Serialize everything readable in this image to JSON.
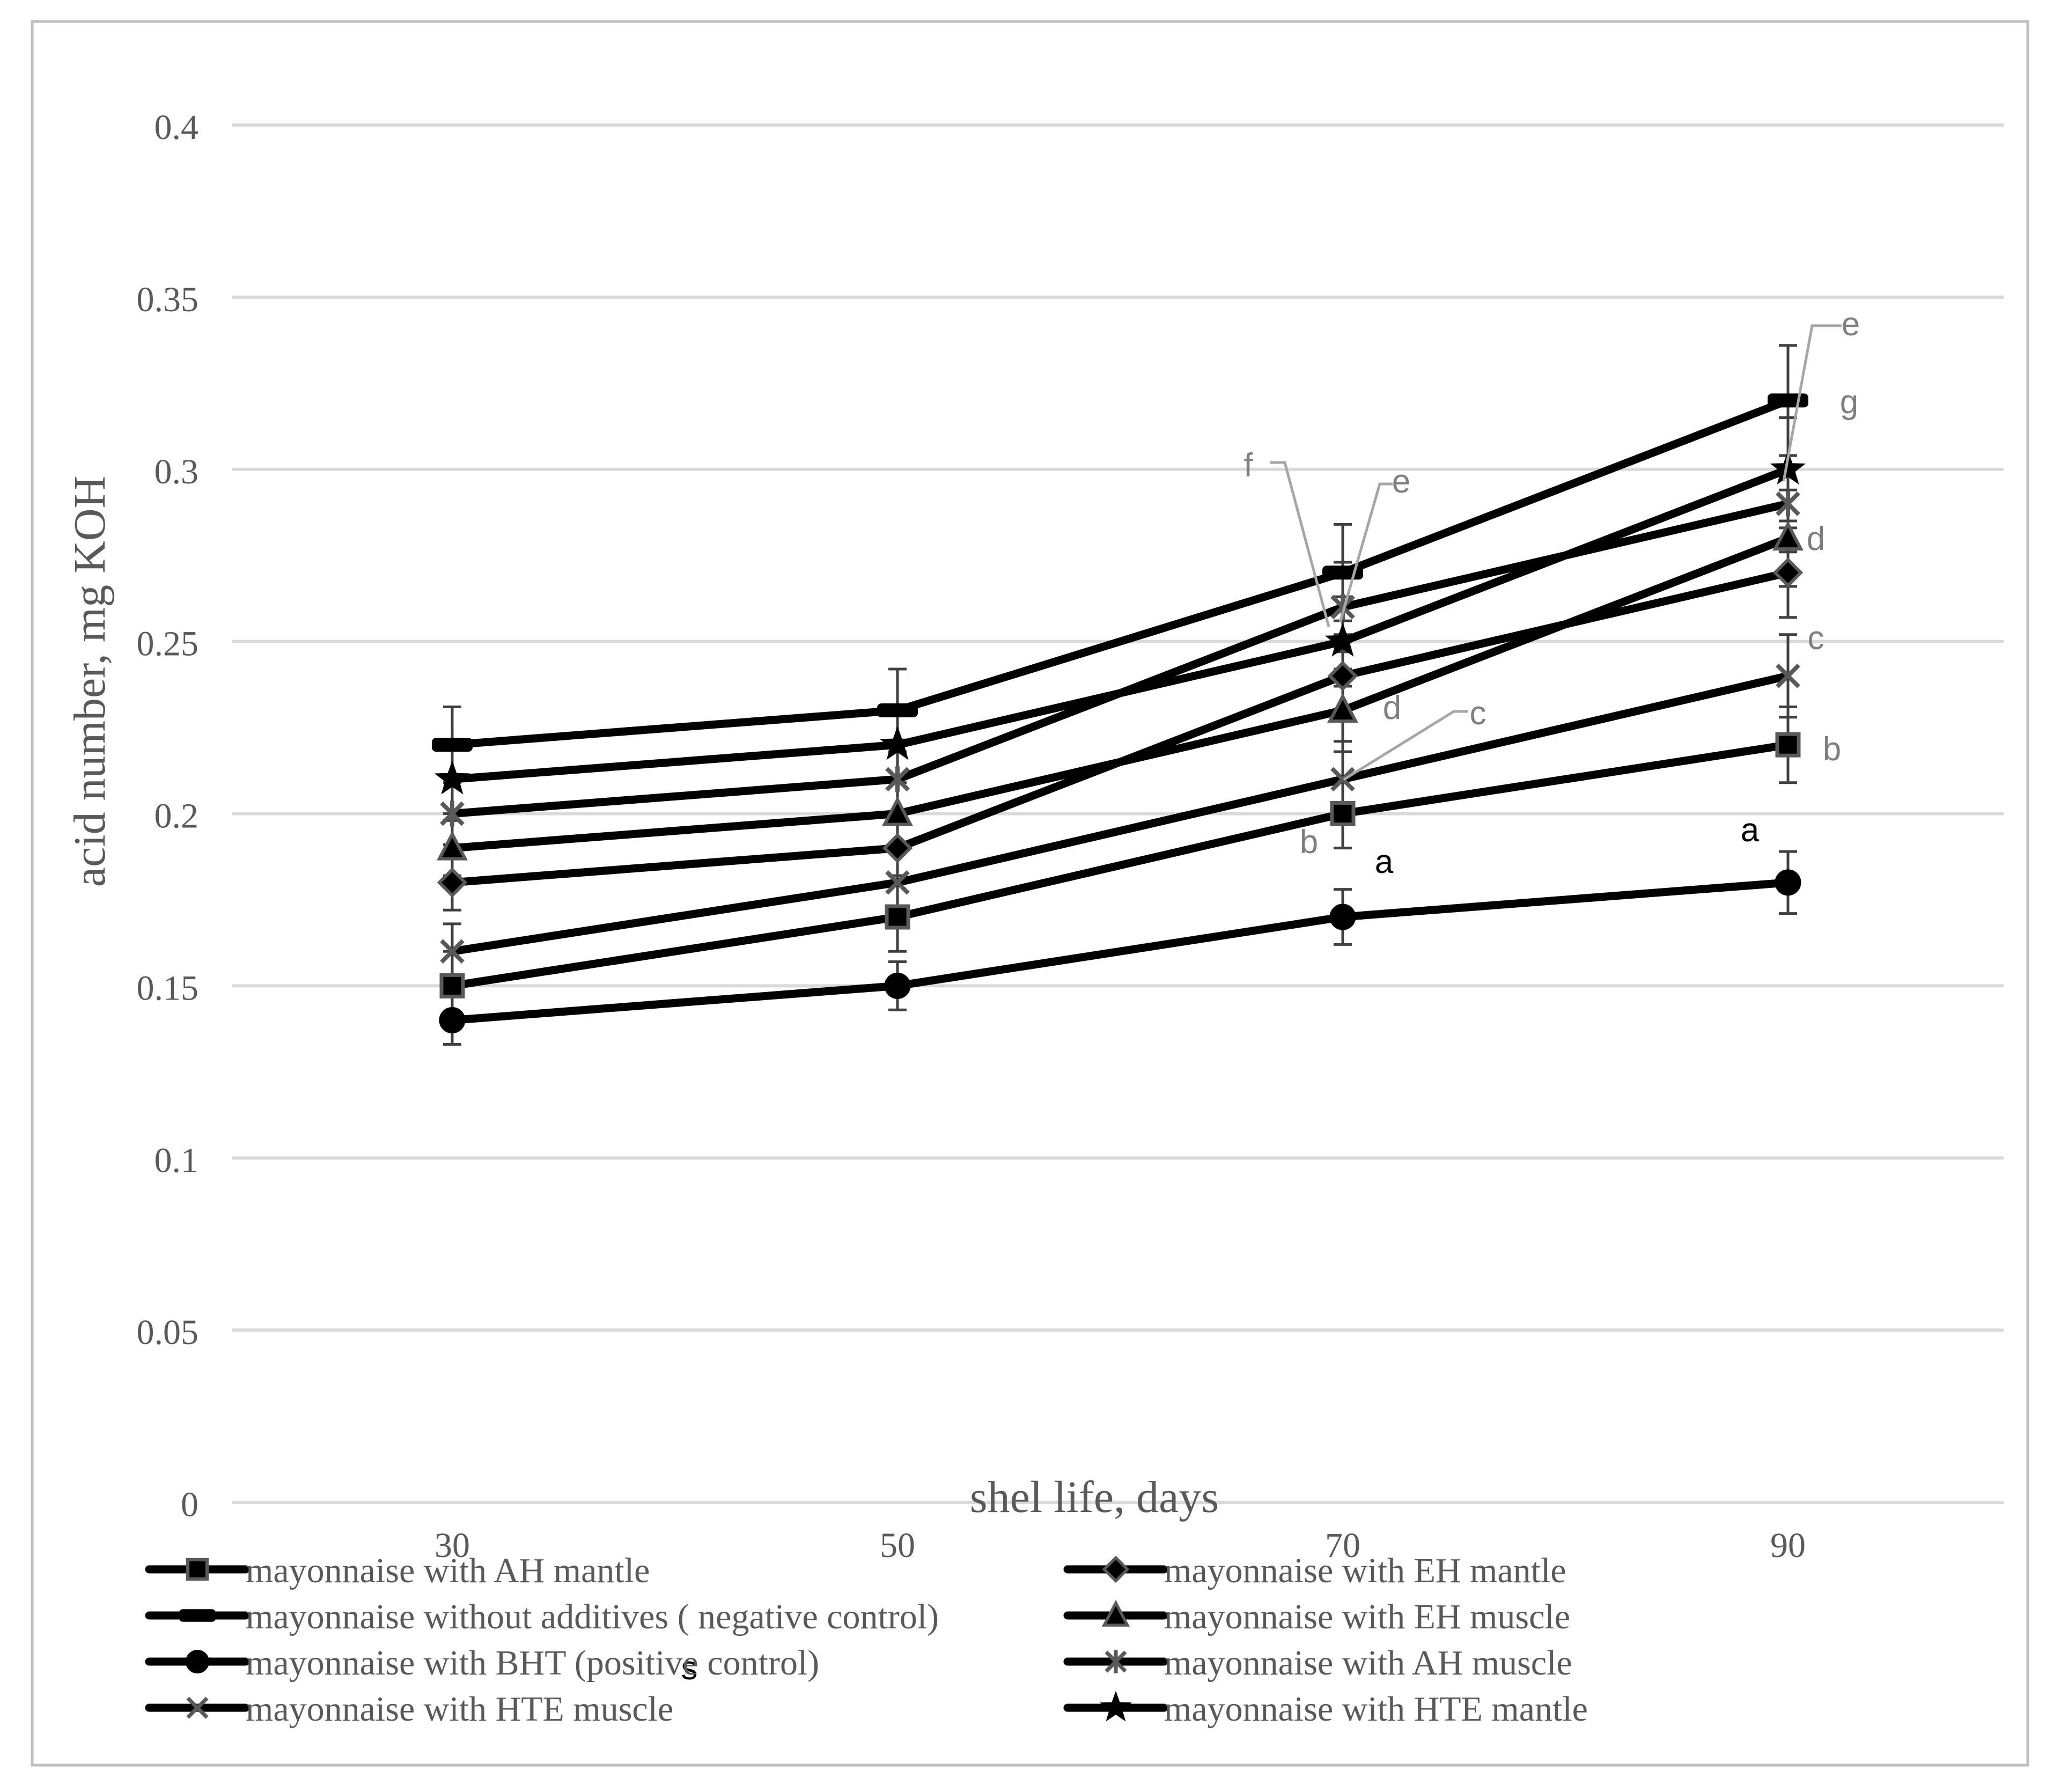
{
  "chart_data": {
    "type": "line",
    "xlabel": "shel life, days",
    "ylabel": "acid number, mg KOH",
    "x": [
      30,
      50,
      70,
      90
    ],
    "ylim": [
      0,
      0.4
    ],
    "yticks": [
      "0",
      "0.05",
      "0.1",
      "0.15",
      "0.2",
      "0.25",
      "0.3",
      "0.35",
      "0.4"
    ],
    "xticks": [
      "30",
      "50",
      "70",
      "90"
    ],
    "grid": true,
    "legend_position": "bottom",
    "series": [
      {
        "name": "mayonnaise with AH mantle",
        "marker": "square",
        "values": [
          0.15,
          0.17,
          0.2,
          0.22
        ],
        "error": [
          0.01,
          0.01,
          0.01,
          0.011
        ]
      },
      {
        "name": "mayonnaise with EH mantle",
        "marker": "diamond",
        "values": [
          0.18,
          0.19,
          0.24,
          0.27
        ],
        "error": [
          0.008,
          0.008,
          0.012,
          0.013
        ]
      },
      {
        "name": "mayonnaise without additives ( negative control)",
        "marker": "dash",
        "values": [
          0.22,
          0.23,
          0.27,
          0.32
        ],
        "error": [
          0.011,
          0.012,
          0.014,
          0.016
        ]
      },
      {
        "name": "mayonnaise with EH muscle",
        "marker": "triangle",
        "values": [
          0.19,
          0.2,
          0.23,
          0.28
        ],
        "error": [
          0.008,
          0.009,
          0.012,
          0.014
        ]
      },
      {
        "name": "mayonnaise with BHT (positive control)",
        "marker": "circle",
        "values": [
          0.14,
          0.15,
          0.17,
          0.18
        ],
        "error": [
          0.007,
          0.007,
          0.008,
          0.009
        ]
      },
      {
        "name": "mayonnaise with AH muscle",
        "marker": "asterisk",
        "values": [
          0.2,
          0.21,
          0.26,
          0.29
        ],
        "error": [
          0.009,
          0.01,
          0.013,
          0.014
        ]
      },
      {
        "name": "mayonnaise with HTE muscle",
        "marker": "x",
        "values": [
          0.16,
          0.18,
          0.21,
          0.24
        ],
        "error": [
          0.008,
          0.009,
          0.011,
          0.012
        ]
      },
      {
        "name": "mayonnaise with HTE mantle",
        "marker": "star",
        "values": [
          0.21,
          0.22,
          0.25,
          0.3
        ],
        "error": [
          0.01,
          0.011,
          0.013,
          0.015
        ]
      }
    ],
    "annotations": [
      {
        "text": "f",
        "x": 70,
        "color": "#7f7f7f",
        "leader": true
      },
      {
        "text": "e",
        "x": 70,
        "color": "#7f7f7f",
        "leader": true
      },
      {
        "text": "d",
        "x": 70,
        "color": "#7f7f7f",
        "leader": false
      },
      {
        "text": "c",
        "x": 70,
        "color": "#7f7f7f",
        "leader": true
      },
      {
        "text": "b",
        "x": 70,
        "color": "#7f7f7f",
        "leader": false
      },
      {
        "text": "a",
        "x": 70,
        "color": "#000000",
        "leader": false
      },
      {
        "text": "e",
        "x": 90,
        "color": "#7f7f7f",
        "leader": true
      },
      {
        "text": "g",
        "x": 90,
        "color": "#7f7f7f",
        "leader": false
      },
      {
        "text": "d",
        "x": 90,
        "color": "#7f7f7f",
        "leader": false
      },
      {
        "text": "c",
        "x": 90,
        "color": "#7f7f7f",
        "leader": false
      },
      {
        "text": "b",
        "x": 90,
        "color": "#7f7f7f",
        "leader": false
      },
      {
        "text": "a",
        "x": 90,
        "color": "#000000",
        "leader": false
      },
      {
        "text": "s",
        "x": null,
        "color": "#000000",
        "leader": false
      }
    ]
  },
  "colors": {
    "line": "#000000",
    "marker_fill": "#000000",
    "marker_stroke": "#595959",
    "grid": "#d9d9d9",
    "axis_text": "#595959",
    "annotation_gray": "#7f7f7f",
    "frame": "#bfbfbf"
  }
}
